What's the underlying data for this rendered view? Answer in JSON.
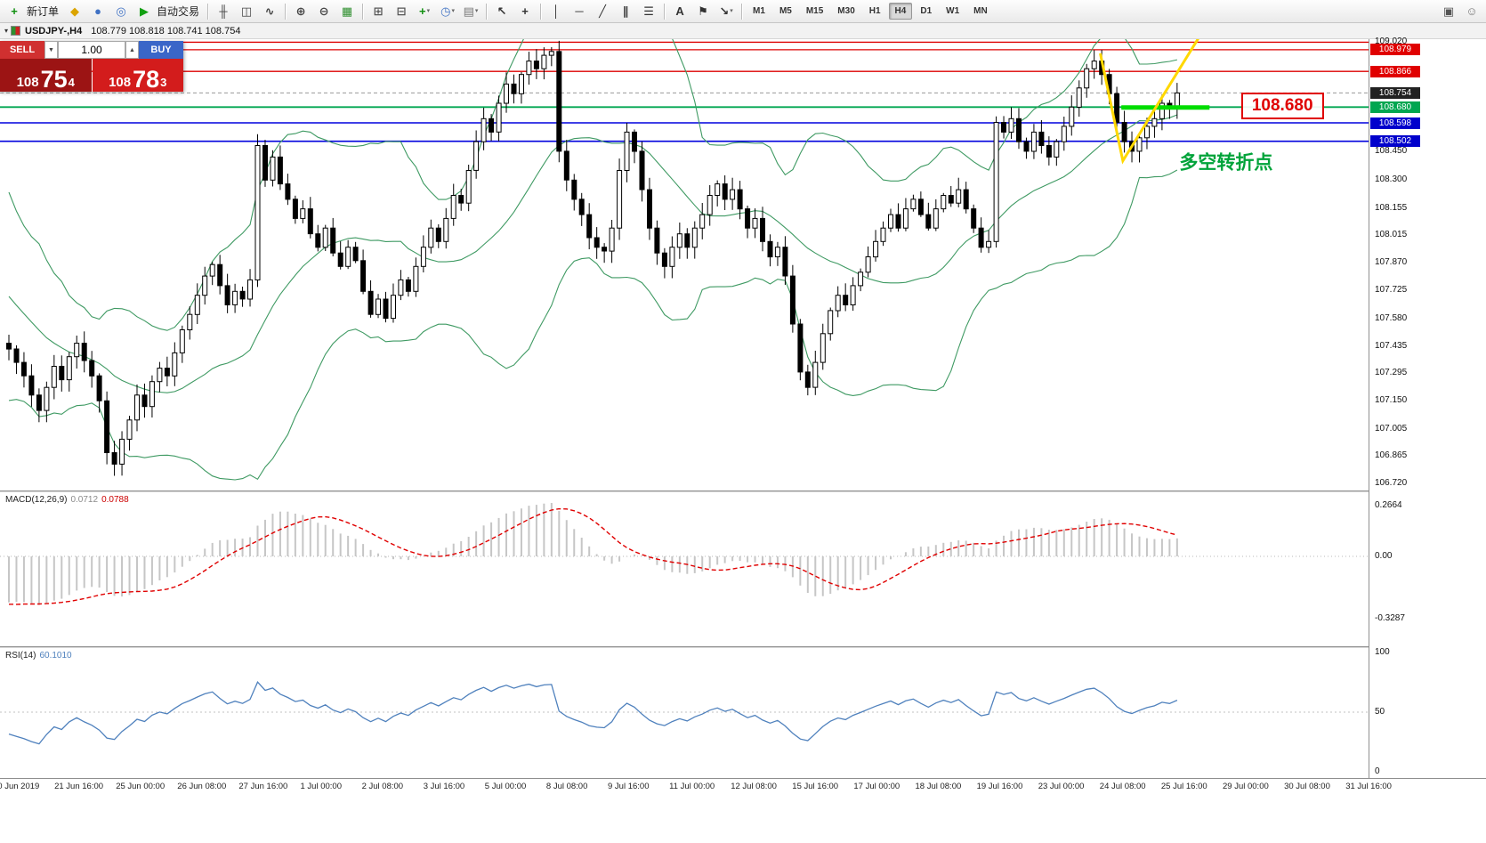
{
  "caption": {
    "menu_glyph": "▾",
    "title": "USDJPY-,H4",
    "ohlc": "108.779 108.818 108.741 108.754"
  },
  "toolbar": {
    "dropdown_glyph": "▾",
    "items": [
      {
        "t": "btn",
        "name": "new-order-button",
        "icon": "new-order-icon",
        "glyph": "+",
        "color": "#0e8f0e",
        "label": "新订单"
      },
      {
        "t": "btn",
        "name": "charts-button",
        "icon": "chart-window-icon",
        "glyph": "◆",
        "color": "#dba400"
      },
      {
        "t": "btn",
        "name": "profiles-button",
        "icon": "profiles-icon",
        "glyph": "●",
        "color": "#4072c4"
      },
      {
        "t": "btn",
        "name": "terminal-button",
        "icon": "terminal-icon",
        "glyph": "◎",
        "color": "#4072c4"
      },
      {
        "t": "btn",
        "name": "auto-trading-button",
        "icon": "play-icon",
        "glyph": "▶",
        "color": "#12a012",
        "label": "自动交易"
      },
      {
        "t": "sep"
      },
      {
        "t": "btn",
        "name": "bar-chart-button",
        "icon": "ohlc-bars-icon",
        "glyph": "╫",
        "color": "#444444"
      },
      {
        "t": "btn",
        "name": "candlestick-chart-button",
        "icon": "candlestick-icon",
        "glyph": "◫",
        "color": "#444444"
      },
      {
        "t": "btn",
        "name": "line-chart-button",
        "icon": "line-chart-icon",
        "glyph": "∿",
        "color": "#444444"
      },
      {
        "t": "sep"
      },
      {
        "t": "btn",
        "name": "zoom-in-button",
        "icon": "zoom-in-icon",
        "glyph": "⊕",
        "color": "#444444"
      },
      {
        "t": "btn",
        "name": "zoom-out-button",
        "icon": "zoom-out-icon",
        "glyph": "⊖",
        "color": "#444444"
      },
      {
        "t": "btn",
        "name": "grid-button",
        "icon": "grid-icon",
        "glyph": "▦",
        "color": "#2f8f2f"
      },
      {
        "t": "sep"
      },
      {
        "t": "btn",
        "name": "tile-windows-button",
        "icon": "tile-windows-icon",
        "glyph": "⊞",
        "color": "#555555"
      },
      {
        "t": "btn",
        "name": "cascade-windows-button",
        "icon": "cascade-windows-icon",
        "glyph": "⊟",
        "color": "#555555"
      },
      {
        "t": "btn",
        "name": "indicators-button",
        "icon": "indicators-icon",
        "glyph": "+",
        "color": "#0e8f0e",
        "dd": true
      },
      {
        "t": "btn",
        "name": "periods-button",
        "icon": "clock-icon",
        "glyph": "◷",
        "color": "#4072c4",
        "dd": true
      },
      {
        "t": "btn",
        "name": "templates-button",
        "icon": "template-icon",
        "glyph": "▤",
        "color": "#777777",
        "dd": true
      },
      {
        "t": "sep"
      },
      {
        "t": "btn",
        "name": "cursor-button",
        "icon": "cursor-icon",
        "glyph": "↖",
        "color": "#333333"
      },
      {
        "t": "btn",
        "name": "crosshair-button",
        "icon": "crosshair-icon",
        "glyph": "+",
        "color": "#333333"
      },
      {
        "t": "sep"
      },
      {
        "t": "btn",
        "name": "vertical-line-button",
        "icon": "vertical-line-icon",
        "glyph": "│",
        "color": "#333333"
      },
      {
        "t": "btn",
        "name": "horizontal-line-button",
        "icon": "horizontal-line-icon",
        "glyph": "─",
        "color": "#333333"
      },
      {
        "t": "btn",
        "name": "trendline-button",
        "icon": "trendline-icon",
        "glyph": "╱",
        "color": "#333333"
      },
      {
        "t": "btn",
        "name": "channel-button",
        "icon": "channel-icon",
        "glyph": "∥",
        "color": "#333333"
      },
      {
        "t": "btn",
        "name": "fibonacci-button",
        "icon": "fibonacci-icon",
        "glyph": "☰",
        "color": "#333333"
      },
      {
        "t": "sep"
      },
      {
        "t": "btn",
        "name": "text-tool-button",
        "icon": "text-icon",
        "glyph": "A",
        "color": "#333333"
      },
      {
        "t": "btn",
        "name": "label-tool-button",
        "icon": "flag-icon",
        "glyph": "⚑",
        "color": "#333333"
      },
      {
        "t": "btn",
        "name": "arrows-tool-button",
        "icon": "arrow-icon",
        "glyph": "↘",
        "color": "#333333",
        "dd": true
      },
      {
        "t": "sep"
      },
      {
        "t": "tf",
        "name": "timeframe-m1-button",
        "label": "M1"
      },
      {
        "t": "tf",
        "name": "timeframe-m5-button",
        "label": "M5"
      },
      {
        "t": "tf",
        "name": "timeframe-m15-button",
        "label": "M15"
      },
      {
        "t": "tf",
        "name": "timeframe-m30-button",
        "label": "M30"
      },
      {
        "t": "tf",
        "name": "timeframe-h1-button",
        "label": "H1"
      },
      {
        "t": "tf",
        "name": "timeframe-h4-button",
        "label": "H4",
        "active": true
      },
      {
        "t": "tf",
        "name": "timeframe-d1-button",
        "label": "D1"
      },
      {
        "t": "tf",
        "name": "timeframe-w1-button",
        "label": "W1"
      },
      {
        "t": "tf",
        "name": "timeframe-mn-button",
        "label": "MN"
      },
      {
        "t": "spring"
      },
      {
        "t": "btn",
        "name": "new-window-button",
        "icon": "new-window-icon",
        "glyph": "▣",
        "color": "#555555"
      },
      {
        "t": "btn",
        "name": "help-button",
        "icon": "smiley-icon",
        "glyph": "☺",
        "color": "#777777"
      }
    ]
  },
  "trade_panel": {
    "sell_label": "SELL",
    "buy_label": "BUY",
    "lot_value": "1.00",
    "spin_down": "▼",
    "spin_up": "▲",
    "sell_price_main": "108",
    "sell_price_big": "75",
    "sell_price_sup": "4",
    "buy_price_main": "108",
    "buy_price_big": "78",
    "buy_price_sup": "3"
  },
  "price_axis": {
    "labels": [
      "109.020",
      "108.450",
      "108.300",
      "108.155",
      "108.015",
      "107.870",
      "107.725",
      "107.580",
      "107.435",
      "107.295",
      "107.150",
      "107.005",
      "106.865",
      "106.720"
    ],
    "badges": [
      {
        "text": "108.979",
        "color": "#e00000"
      },
      {
        "text": "108.866",
        "color": "#e00000"
      },
      {
        "text": "108.754",
        "color": "#222222"
      },
      {
        "text": "108.680",
        "color": "#00a650"
      },
      {
        "text": "108.598",
        "color": "#0000cc"
      },
      {
        "text": "108.502",
        "color": "#0000cc"
      }
    ]
  },
  "macd": {
    "name": "MACD(12,26,9)",
    "value_main": "0.0712",
    "value_signal": "0.0788",
    "axis": [
      "0.2664",
      "0.00",
      "-0.3287"
    ]
  },
  "rsi": {
    "name": "RSI(14)",
    "value": "60.1010",
    "axis": [
      "100",
      "50",
      "0"
    ]
  },
  "time_axis": [
    "20 Jun 2019",
    "21 Jun 16:00",
    "25 Jun 00:00",
    "26 Jun 08:00",
    "27 Jun 16:00",
    "1 Jul 00:00",
    "2 Jul 08:00",
    "3 Jul 16:00",
    "5 Jul 00:00",
    "8 Jul 08:00",
    "9 Jul 16:00",
    "11 Jul 00:00",
    "12 Jul 08:00",
    "15 Jul 16:00",
    "17 Jul 00:00",
    "18 Jul 08:00",
    "19 Jul 16:00",
    "23 Jul 00:00",
    "24 Jul 08:00",
    "25 Jul 16:00",
    "29 Jul 00:00",
    "30 Jul 08:00",
    "31 Jul 16:00"
  ],
  "chart_data": {
    "type": "candlestick",
    "symbol": "USDJPY-",
    "timeframe": "H4",
    "title": "USDJPY-,H4 108.779 108.818 108.741 108.754",
    "price_range": [
      106.72,
      109.02
    ],
    "bid_price": 108.754,
    "bars_visible": 156,
    "hlines": [
      {
        "price": 109.018,
        "color": "#dd0000",
        "width": 1.3
      },
      {
        "price": 108.979,
        "color": "#dd0000",
        "width": 1.3
      },
      {
        "price": 108.866,
        "color": "#dd0000",
        "width": 1.3
      },
      {
        "price": 108.68,
        "color": "#00a650",
        "width": 1.8
      },
      {
        "price": 108.598,
        "color": "#0000dd",
        "width": 1.6
      },
      {
        "price": 108.502,
        "color": "#0000dd",
        "width": 1.6
      }
    ],
    "indicators": {
      "bollinger": {
        "period": 20,
        "deviation": 2,
        "color": "#3f9a63"
      },
      "macd": {
        "fast": 12,
        "slow": 26,
        "signal": 9,
        "value_main": 0.0712,
        "value_signal": 0.0788
      },
      "rsi": {
        "period": 14,
        "value": 60.101
      }
    },
    "annotations": {
      "callout": {
        "text": "108.680",
        "bar": 163.5,
        "price": 108.695
      },
      "turning_point": {
        "text": "多空转折点",
        "bar": 155.3,
        "price": 108.36
      },
      "v_mark": {
        "color": "#ffd800",
        "width": 3,
        "points": [
          {
            "bar": 144.8,
            "price": 108.96
          },
          {
            "bar": 147.8,
            "price": 108.4
          },
          {
            "bar": 158,
            "price": 109.05
          }
        ]
      },
      "support_segment": {
        "bar1": 147.6,
        "bar2": 159.3,
        "price": 108.678,
        "color": "#00dd00",
        "width": 5
      }
    },
    "warmup_closes": [
      108.52,
      108.55,
      108.48,
      108.5,
      108.53,
      108.47,
      108.55,
      108.5,
      108.45,
      108.52,
      108.48,
      108.55,
      108.5,
      108.46,
      108.52,
      108.4,
      108.28,
      108.15,
      108.05,
      107.95,
      108.02,
      107.88,
      107.75,
      107.82,
      107.68,
      107.58,
      107.65,
      107.52,
      107.45,
      107.55,
      107.42,
      107.38,
      107.48,
      107.4,
      107.45
    ],
    "closes": [
      107.42,
      107.35,
      107.28,
      107.18,
      107.1,
      107.22,
      107.33,
      107.26,
      107.38,
      107.45,
      107.36,
      107.28,
      107.15,
      106.88,
      106.82,
      106.95,
      107.05,
      107.18,
      107.12,
      107.25,
      107.32,
      107.28,
      107.4,
      107.52,
      107.6,
      107.7,
      107.8,
      107.86,
      107.75,
      107.65,
      107.72,
      107.68,
      107.78,
      108.48,
      108.3,
      108.42,
      108.28,
      108.2,
      108.1,
      108.15,
      108.02,
      107.95,
      108.05,
      107.92,
      107.85,
      107.95,
      107.88,
      107.72,
      107.6,
      107.68,
      107.58,
      107.7,
      107.78,
      107.72,
      107.85,
      107.95,
      108.05,
      107.98,
      108.1,
      108.22,
      108.18,
      108.35,
      108.5,
      108.62,
      108.55,
      108.7,
      108.8,
      108.75,
      108.85,
      108.92,
      108.88,
      108.95,
      108.97,
      108.45,
      108.3,
      108.2,
      108.12,
      108.0,
      107.95,
      107.93,
      108.05,
      108.35,
      108.55,
      108.45,
      108.25,
      108.05,
      107.92,
      107.85,
      107.95,
      108.02,
      107.95,
      108.05,
      108.12,
      108.22,
      108.28,
      108.2,
      108.25,
      108.15,
      108.05,
      108.1,
      107.98,
      107.9,
      107.95,
      107.8,
      107.55,
      107.3,
      107.22,
      107.35,
      107.5,
      107.62,
      107.7,
      107.65,
      107.75,
      107.82,
      107.9,
      107.98,
      108.05,
      108.12,
      108.05,
      108.15,
      108.2,
      108.12,
      108.05,
      108.15,
      108.22,
      108.18,
      108.25,
      108.15,
      108.05,
      107.95,
      107.98,
      108.6,
      108.55,
      108.62,
      108.5,
      108.45,
      108.55,
      108.48,
      108.42,
      108.5,
      108.58,
      108.68,
      108.78,
      108.88,
      108.92,
      108.85,
      108.75,
      108.6,
      108.5,
      108.45,
      108.52,
      108.58,
      108.62,
      108.7,
      108.68,
      108.754
    ]
  }
}
